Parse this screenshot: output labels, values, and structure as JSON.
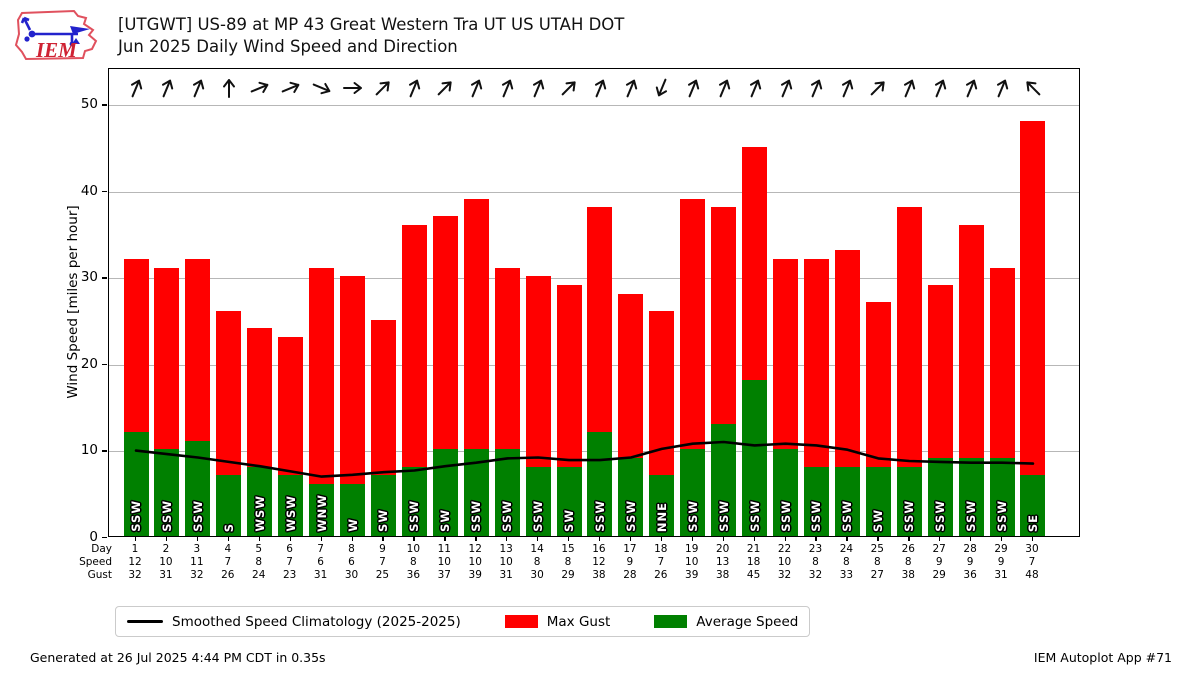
{
  "header": {
    "logo_text": "IEM",
    "title_line1": "[UTGWT] US-89 at MP 43 Great Western Tra UT US UTAH DOT",
    "title_line2": "Jun 2025 Daily Wind Speed and Direction"
  },
  "chart_data": {
    "type": "bar",
    "title": "[UTGWT] US-89 at MP 43 Great Western Tra UT US UTAH DOT — Jun 2025 Daily Wind Speed and Direction",
    "ylabel": "Wind Speed [miles per hour]",
    "ylim": [
      0,
      54.2
    ],
    "yticks": [
      0,
      10,
      20,
      30,
      40,
      50
    ],
    "grid": true,
    "legend_position": "bottom",
    "categories": [
      1,
      2,
      3,
      4,
      5,
      6,
      7,
      8,
      9,
      10,
      11,
      12,
      13,
      14,
      15,
      16,
      17,
      18,
      19,
      20,
      21,
      22,
      23,
      24,
      25,
      26,
      27,
      28,
      29,
      30
    ],
    "series": [
      {
        "name": "Max Gust",
        "type": "bar",
        "color": "#ff0000",
        "values": [
          32,
          31,
          32,
          26,
          24,
          23,
          31,
          30,
          25,
          36,
          37,
          39,
          31,
          30,
          29,
          38,
          28,
          26,
          39,
          38,
          45,
          32,
          32,
          33,
          27,
          38,
          29,
          36,
          31,
          48
        ]
      },
      {
        "name": "Average Speed",
        "type": "bar",
        "color": "#008000",
        "values": [
          12,
          10,
          11,
          7,
          8,
          7,
          6,
          6,
          7,
          8,
          10,
          10,
          10,
          8,
          8,
          12,
          9,
          7,
          10,
          13,
          18,
          10,
          8,
          8,
          8,
          8,
          9,
          9,
          9,
          7
        ]
      },
      {
        "name": "Smoothed Speed Climatology (2025-2025)",
        "type": "line",
        "color": "#000000",
        "values": [
          10.1,
          9.7,
          9.3,
          8.8,
          8.3,
          7.7,
          7.1,
          7.3,
          7.6,
          7.8,
          8.3,
          8.7,
          9.2,
          9.3,
          9.0,
          9.0,
          9.3,
          10.3,
          10.9,
          11.1,
          10.7,
          10.9,
          10.7,
          10.2,
          9.2,
          8.9,
          8.8,
          8.7,
          8.7,
          8.6
        ]
      }
    ],
    "wind_directions": [
      "SSW",
      "SSW",
      "SSW",
      "S",
      "WSW",
      "WSW",
      "WNW",
      "W",
      "SW",
      "SSW",
      "SW",
      "SSW",
      "SSW",
      "SSW",
      "SW",
      "SSW",
      "SSW",
      "NNE",
      "SSW",
      "SSW",
      "SSW",
      "SSW",
      "SSW",
      "SSW",
      "SW",
      "SSW",
      "SSW",
      "SSW",
      "SSW",
      "SE"
    ]
  },
  "table": {
    "row_labels": [
      "Day",
      "Speed",
      "Gust"
    ]
  },
  "legend": {
    "items": [
      {
        "label": "Smoothed Speed Climatology (2025-2025)",
        "swatch": "line",
        "color": "#000000"
      },
      {
        "label": "Max Gust",
        "swatch": "rect",
        "color": "#ff0000"
      },
      {
        "label": "Average Speed",
        "swatch": "rect",
        "color": "#008000"
      }
    ]
  },
  "footer": {
    "left": "Generated at 26 Jul 2025 4:44 PM CDT in 0.35s",
    "right": "IEM Autoplot App #71"
  }
}
